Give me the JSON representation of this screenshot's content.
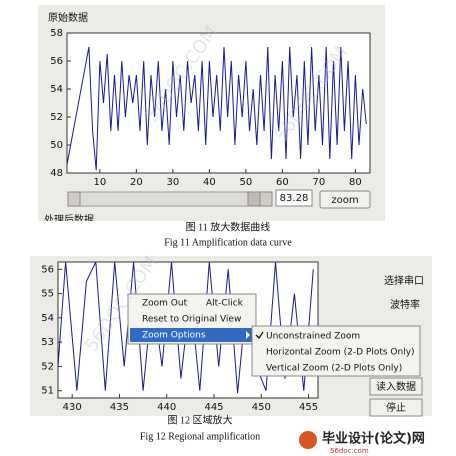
{
  "figures": [
    {
      "chart": {
        "type": "line",
        "title": "原始数据",
        "color": "#1a1a8c",
        "x": [
          1,
          7,
          8,
          9,
          10,
          11,
          12,
          13,
          14,
          15,
          16,
          17,
          18,
          19,
          20,
          21,
          22,
          23,
          24,
          25,
          26,
          27,
          28,
          29,
          30,
          31,
          32,
          33,
          34,
          35,
          36,
          37,
          38,
          39,
          40,
          41,
          42,
          43,
          44,
          45,
          46,
          47,
          48,
          49,
          50,
          51,
          52,
          53,
          54,
          55,
          56,
          57,
          58,
          59,
          60,
          61,
          62,
          63,
          64,
          65,
          66,
          67,
          68,
          69,
          70,
          71,
          72,
          73,
          74,
          75,
          76,
          77,
          78,
          79,
          80,
          81,
          82,
          83
        ],
        "values": [
          48.6,
          57,
          51,
          48.2,
          56,
          53,
          56.5,
          51,
          55,
          51,
          56,
          52,
          55,
          53,
          55,
          51,
          56,
          50,
          55,
          52,
          56,
          51,
          54,
          50,
          56,
          52,
          55,
          51,
          56,
          53,
          55,
          51,
          56,
          50,
          56,
          52,
          55,
          51,
          57,
          52,
          56,
          50,
          55,
          52,
          56,
          51,
          54,
          50,
          55,
          51,
          57,
          49,
          55,
          51,
          56,
          49,
          57,
          52,
          55,
          49,
          56,
          50,
          57,
          51,
          55,
          50,
          57,
          49,
          56,
          50,
          57,
          51,
          56,
          49,
          55,
          50,
          54,
          51.5
        ],
        "xlim": [
          1,
          84
        ],
        "ylim": [
          48,
          58
        ],
        "xticks": [
          10,
          20,
          30,
          40,
          50,
          60,
          70,
          80
        ],
        "yticks": [
          48,
          50,
          52,
          54,
          56,
          58
        ]
      },
      "slider_value": "83.28",
      "button": "zoom",
      "next_label": "处理后数据",
      "caption_cn": "图 11 放大数据曲线",
      "caption_en": "Fig 11 Amplification data curve"
    },
    {
      "chart": {
        "type": "line",
        "color": "#1a1a8c",
        "x": [
          428.5,
          429.3,
          430.5,
          431.5,
          432.5,
          433.5,
          434.5,
          435.5,
          436.5,
          437.5,
          438.5,
          439.5,
          440.5,
          441.5,
          442.5,
          443.5,
          444.5,
          445.5,
          446.5,
          447.5,
          448.5,
          449.5,
          450.5,
          451.5,
          452.5,
          453.5,
          454.5,
          455.5
        ],
        "values": [
          52,
          56.3,
          51,
          55.5,
          56.3,
          51,
          56.3,
          52,
          56.3,
          51,
          55,
          52,
          56.3,
          51.5,
          55,
          51,
          56.3,
          52,
          56,
          50.9,
          55,
          52,
          51,
          56.3,
          51.5,
          55,
          51,
          56
        ],
        "xlim": [
          428.5,
          456
        ],
        "ylim": [
          50.7,
          56.3
        ],
        "xticks": [
          430,
          435,
          440,
          445,
          450,
          455
        ],
        "yticks": [
          51,
          52,
          53,
          54,
          55,
          56
        ]
      },
      "menu": {
        "items": [
          "Zoom Out",
          "Reset to Original View",
          "Zoom Options"
        ],
        "shortcut": "Alt-Click",
        "submenu": [
          "Unconstrained Zoom",
          "Horizontal Zoom (2-D Plots Only)",
          "Vertical Zoom (2-D Plots Only)"
        ]
      },
      "side": [
        "选择串口",
        "波特率",
        "读入数据",
        "停止"
      ],
      "caption_cn": "图 12 区域放大",
      "caption_en": "Fig 12 Regional amplification"
    }
  ],
  "logo": {
    "name": "毕业设计(论文)网",
    "url": "56doc.com"
  },
  "watermark": "56DOC.COM"
}
